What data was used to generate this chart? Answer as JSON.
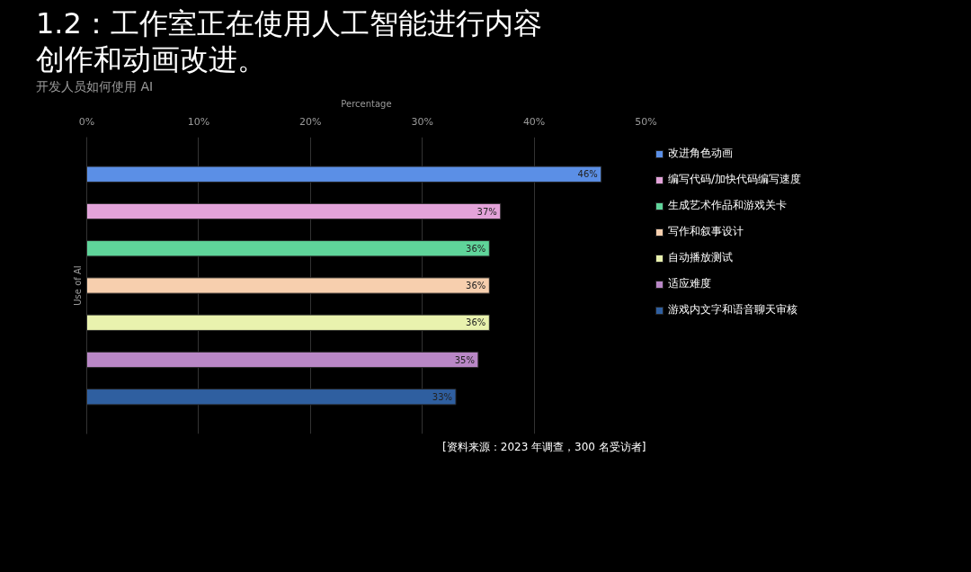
{
  "chart_data": {
    "type": "bar",
    "orientation": "horizontal",
    "title": "1.2：工作室正在使用人工智能进行内容创作和动画改进。",
    "subtitle": "开发人员如何使用 AI",
    "xlabel": "Percentage",
    "ylabel": "Use of AI",
    "categories": [
      null
    ],
    "series": [
      {
        "name": "改进角色动画",
        "color": "#5b8fe6",
        "values": [
          46
        ],
        "value_labels": [
          "46%"
        ]
      },
      {
        "name": "编写代码/加快代码编写速度",
        "color": "#e3a3d9",
        "values": [
          37
        ],
        "value_labels": [
          "37%"
        ]
      },
      {
        "name": "生成艺术作品和游戏关卡",
        "color": "#5fd49a",
        "values": [
          36
        ],
        "value_labels": [
          "36%"
        ]
      },
      {
        "name": "写作和叙事设计",
        "color": "#f7cfae",
        "values": [
          36
        ],
        "value_labels": [
          "36%"
        ]
      },
      {
        "name": "自动播放测试",
        "color": "#e9f2ae",
        "values": [
          36
        ],
        "value_labels": [
          "36%"
        ]
      },
      {
        "name": "适应难度",
        "color": "#b987c6",
        "values": [
          35
        ],
        "value_labels": [
          "35%"
        ]
      },
      {
        "name": "游戏内文字和语音聊天审核",
        "color": "#2f5fa0",
        "values": [
          33
        ],
        "value_labels": [
          "33%"
        ]
      }
    ],
    "xlim": [
      0,
      50
    ],
    "xticks": [
      {
        "value": 0,
        "label": "0%"
      },
      {
        "value": 10,
        "label": "10%"
      },
      {
        "value": 20,
        "label": "20%"
      },
      {
        "value": 30,
        "label": "30%"
      },
      {
        "value": 40,
        "label": "40%"
      },
      {
        "value": 50,
        "label": "50%"
      }
    ],
    "grid": "x",
    "legend": "right",
    "tick_labels": "x",
    "annotations": [
      "[资料来源：2023 年调查，300 名受访者]"
    ]
  }
}
